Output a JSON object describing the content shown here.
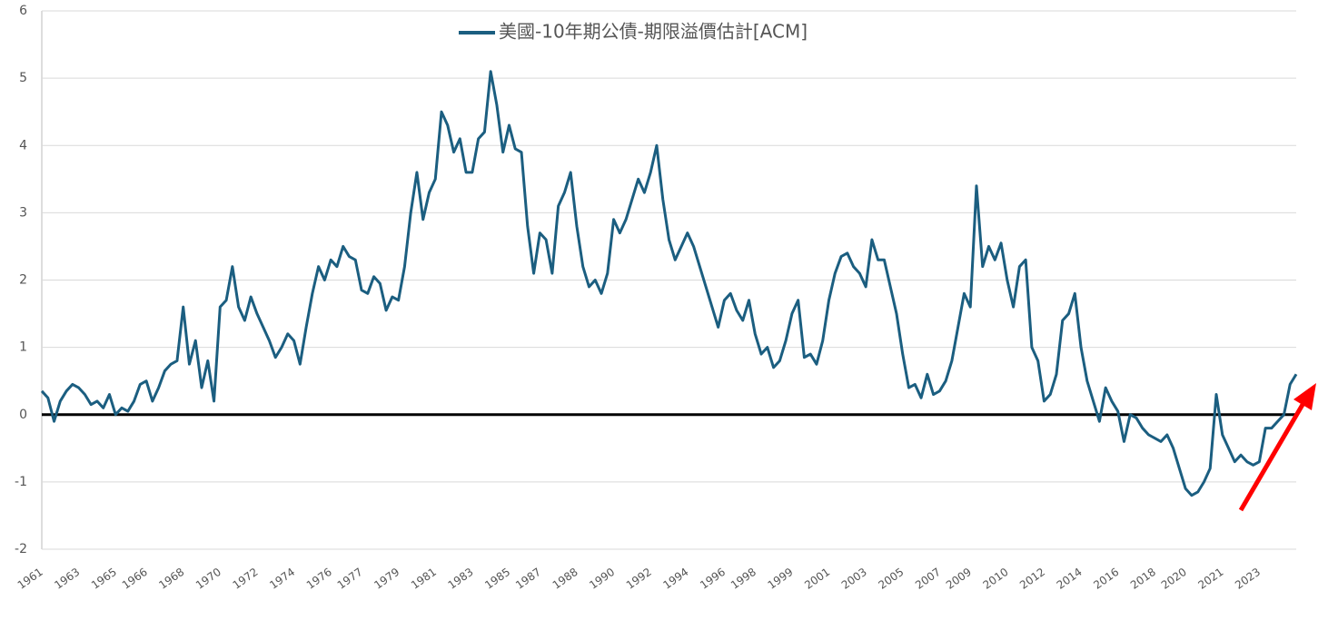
{
  "chart_data": {
    "type": "line",
    "categories": [
      "1961",
      null,
      null,
      null,
      null,
      null,
      "1963",
      null,
      null,
      null,
      null,
      null,
      "1965",
      null,
      null,
      null,
      null,
      "1966",
      null,
      null,
      null,
      null,
      null,
      "1968",
      null,
      null,
      null,
      null,
      null,
      "1970",
      null,
      null,
      null,
      null,
      null,
      "1972",
      null,
      null,
      null,
      null,
      null,
      "1974",
      null,
      null,
      null,
      null,
      null,
      "1976",
      null,
      null,
      null,
      null,
      "1977",
      null,
      null,
      null,
      null,
      null,
      "1979",
      null,
      null,
      null,
      null,
      null,
      "1981",
      null,
      null,
      null,
      null,
      null,
      "1983",
      null,
      null,
      null,
      null,
      null,
      "1985",
      null,
      null,
      null,
      null,
      "1987",
      null,
      null,
      null,
      null,
      null,
      "1988",
      null,
      null,
      null,
      null,
      null,
      "1990",
      null,
      null,
      null,
      null,
      null,
      "1992",
      null,
      null,
      null,
      null,
      null,
      "1994",
      null,
      null,
      null,
      null,
      null,
      "1996",
      null,
      null,
      null,
      null,
      "1998",
      null,
      null,
      null,
      null,
      null,
      "1999",
      null,
      null,
      null,
      null,
      null,
      "2001",
      null,
      null,
      null,
      null,
      null,
      "2003",
      null,
      null,
      null,
      null,
      null,
      "2005",
      null,
      null,
      null,
      null,
      null,
      "2007",
      null,
      null,
      null,
      null,
      "2009",
      null,
      null,
      null,
      null,
      null,
      "2010",
      null,
      null,
      null,
      null,
      null,
      "2012",
      null,
      null,
      null,
      null,
      null,
      "2014",
      null,
      null,
      null,
      null,
      null,
      "2016",
      null,
      null,
      null,
      null,
      null,
      "2018",
      null,
      null,
      null,
      null,
      "2020",
      null,
      null,
      null,
      null,
      null,
      "2021",
      null,
      null,
      null,
      null,
      null,
      "2023",
      null,
      null,
      null,
      null,
      null,
      null
    ],
    "series": [
      {
        "name": "美國-10年期公債-期限溢價估計[ACM]",
        "color": "#1b5e80",
        "values": [
          0.35,
          0.25,
          -0.1,
          0.2,
          0.35,
          0.45,
          0.4,
          0.3,
          0.15,
          0.2,
          0.1,
          0.3,
          0.0,
          0.1,
          0.05,
          0.2,
          0.45,
          0.5,
          0.2,
          0.4,
          0.65,
          0.75,
          0.8,
          1.6,
          0.75,
          1.1,
          0.4,
          0.8,
          0.2,
          1.6,
          1.7,
          2.2,
          1.6,
          1.4,
          1.75,
          1.5,
          1.3,
          1.1,
          0.85,
          1.0,
          1.2,
          1.1,
          0.75,
          1.3,
          1.8,
          2.2,
          2.0,
          2.3,
          2.2,
          2.5,
          2.35,
          2.3,
          1.85,
          1.8,
          2.05,
          1.95,
          1.55,
          1.75,
          1.7,
          2.2,
          3.0,
          3.6,
          2.9,
          3.3,
          3.5,
          4.5,
          4.3,
          3.9,
          4.1,
          3.6,
          3.6,
          4.1,
          4.2,
          5.1,
          4.6,
          3.9,
          4.3,
          3.95,
          3.9,
          2.8,
          2.1,
          2.7,
          2.6,
          2.1,
          3.1,
          3.3,
          3.6,
          2.8,
          2.2,
          1.9,
          2.0,
          1.8,
          2.1,
          2.9,
          2.7,
          2.9,
          3.2,
          3.5,
          3.3,
          3.6,
          4.0,
          3.2,
          2.6,
          2.3,
          2.5,
          2.7,
          2.5,
          2.2,
          1.9,
          1.6,
          1.3,
          1.7,
          1.8,
          1.55,
          1.4,
          1.7,
          1.2,
          0.9,
          1.0,
          0.7,
          0.8,
          1.1,
          1.5,
          1.7,
          0.85,
          0.9,
          0.75,
          1.1,
          1.7,
          2.1,
          2.35,
          2.4,
          2.2,
          2.1,
          1.9,
          2.6,
          2.3,
          2.3,
          1.9,
          1.5,
          0.9,
          0.4,
          0.45,
          0.25,
          0.6,
          0.3,
          0.35,
          0.5,
          0.8,
          1.3,
          1.8,
          1.6,
          3.4,
          2.2,
          2.5,
          2.3,
          2.55,
          2.0,
          1.6,
          2.2,
          2.3,
          1.0,
          0.8,
          0.2,
          0.3,
          0.6,
          1.4,
          1.5,
          1.8,
          1.0,
          0.5,
          0.2,
          -0.1,
          0.4,
          0.2,
          0.05,
          -0.4,
          0.0,
          -0.05,
          -0.2,
          -0.3,
          -0.35,
          -0.4,
          -0.3,
          -0.5,
          -0.8,
          -1.1,
          -1.2,
          -1.15,
          -1.0,
          -0.8,
          0.3,
          -0.3,
          -0.5,
          -0.7,
          -0.6,
          -0.7,
          -0.75,
          -0.7,
          -0.2,
          -0.2,
          -0.1,
          0.0,
          0.45,
          0.6
        ]
      }
    ],
    "ylim": [
      -2,
      6
    ],
    "yticks": [
      -2,
      -1,
      0,
      1,
      2,
      3,
      4,
      5,
      6
    ],
    "grid": true,
    "zero_line": true,
    "legend": "top"
  }
}
